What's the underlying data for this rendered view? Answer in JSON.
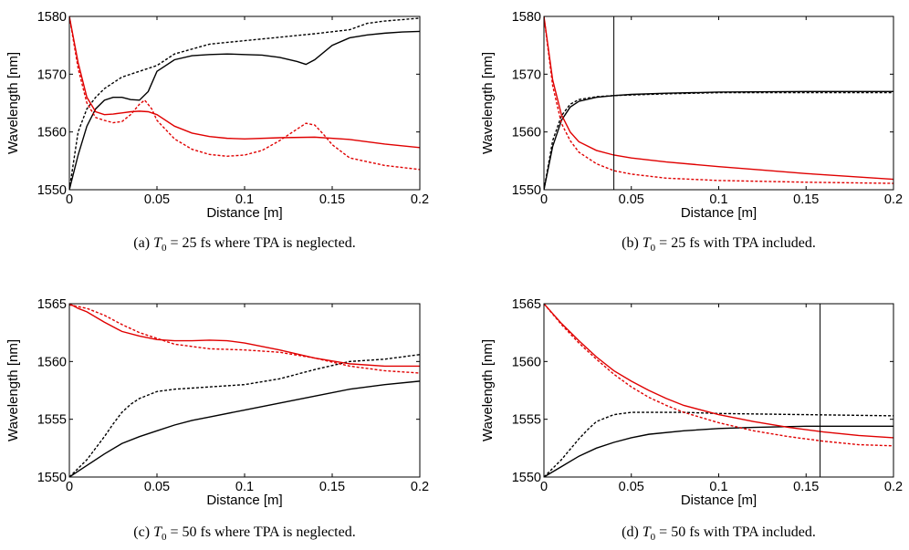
{
  "chart_data": [
    {
      "type": "line",
      "caption": {
        "prefix": "(a)",
        "t": "T",
        "sub": "0",
        "rest": " = 25 fs where TPA is neglected."
      },
      "xlabel": "Distance [m]",
      "ylabel": "Wavelength [nm]",
      "xlim": [
        0,
        0.2
      ],
      "ylim": [
        1550,
        1580
      ],
      "xticks": [
        0,
        0.05,
        0.1,
        0.15,
        0.2
      ],
      "xtick_labels": [
        "0",
        "0.05",
        "0.1",
        "0.15",
        "0.2"
      ],
      "yticks": [
        1550,
        1560,
        1570,
        1580
      ],
      "ytick_labels": [
        "1550",
        "1560",
        "1570",
        "1580"
      ],
      "grid": false,
      "vline": null,
      "series": [
        {
          "color": "#000000",
          "dash": "solid",
          "x": [
            0,
            0.005,
            0.01,
            0.015,
            0.02,
            0.025,
            0.03,
            0.035,
            0.04,
            0.045,
            0.05,
            0.06,
            0.07,
            0.08,
            0.09,
            0.1,
            0.11,
            0.12,
            0.13,
            0.135,
            0.14,
            0.15,
            0.16,
            0.17,
            0.18,
            0.19,
            0.2
          ],
          "y": [
            1550,
            1556,
            1561,
            1564,
            1565.5,
            1566,
            1566,
            1565.6,
            1565.5,
            1567,
            1570.5,
            1572.5,
            1573.2,
            1573.4,
            1573.5,
            1573.4,
            1573.3,
            1572.9,
            1572.2,
            1571.7,
            1572.5,
            1575,
            1576.3,
            1576.8,
            1577.1,
            1577.3,
            1577.4
          ]
        },
        {
          "color": "#000000",
          "dash": "dotted",
          "x": [
            0,
            0.005,
            0.01,
            0.015,
            0.02,
            0.03,
            0.04,
            0.05,
            0.06,
            0.08,
            0.1,
            0.12,
            0.14,
            0.16,
            0.17,
            0.18,
            0.2
          ],
          "y": [
            1550,
            1560,
            1564,
            1566,
            1567.5,
            1569.5,
            1570.5,
            1571.5,
            1573.5,
            1575.2,
            1575.8,
            1576.4,
            1577,
            1577.7,
            1578.8,
            1579.2,
            1579.7
          ]
        },
        {
          "color": "#e00000",
          "dash": "solid",
          "x": [
            0,
            0.005,
            0.01,
            0.015,
            0.02,
            0.025,
            0.03,
            0.035,
            0.04,
            0.045,
            0.05,
            0.06,
            0.07,
            0.08,
            0.09,
            0.1,
            0.12,
            0.14,
            0.16,
            0.18,
            0.2
          ],
          "y": [
            1580,
            1572,
            1566,
            1563.5,
            1563,
            1563.1,
            1563.3,
            1563.5,
            1563.6,
            1563.5,
            1563,
            1561,
            1559.8,
            1559.2,
            1558.9,
            1558.8,
            1559,
            1559.1,
            1558.7,
            1557.9,
            1557.3
          ]
        },
        {
          "color": "#e00000",
          "dash": "dotted",
          "x": [
            0,
            0.005,
            0.01,
            0.015,
            0.02,
            0.025,
            0.03,
            0.035,
            0.04,
            0.043,
            0.047,
            0.05,
            0.06,
            0.07,
            0.08,
            0.09,
            0.1,
            0.11,
            0.12,
            0.13,
            0.135,
            0.14,
            0.145,
            0.15,
            0.16,
            0.18,
            0.2
          ],
          "y": [
            1580,
            1571,
            1565,
            1562.5,
            1562,
            1561.6,
            1561.8,
            1563,
            1564.8,
            1565.5,
            1564,
            1562,
            1558.8,
            1557,
            1556.1,
            1555.8,
            1556,
            1556.8,
            1558.5,
            1560.5,
            1561.5,
            1561.2,
            1559.6,
            1557.8,
            1555.5,
            1554.2,
            1553.5
          ]
        }
      ]
    },
    {
      "type": "line",
      "caption": {
        "prefix": "(b)",
        "t": "T",
        "sub": "0",
        "rest": " = 25 fs with TPA included."
      },
      "xlabel": "Distance [m]",
      "ylabel": "Wavelength [nm]",
      "xlim": [
        0,
        0.2
      ],
      "ylim": [
        1550,
        1580
      ],
      "xticks": [
        0,
        0.05,
        0.1,
        0.15,
        0.2
      ],
      "xtick_labels": [
        "0",
        "0.05",
        "0.1",
        "0.15",
        "0.2"
      ],
      "yticks": [
        1550,
        1560,
        1570,
        1580
      ],
      "ytick_labels": [
        "1550",
        "1560",
        "1570",
        "1580"
      ],
      "grid": false,
      "vline": 0.04,
      "series": [
        {
          "color": "#000000",
          "dash": "solid",
          "x": [
            0,
            0.005,
            0.01,
            0.015,
            0.02,
            0.03,
            0.04,
            0.05,
            0.07,
            0.1,
            0.15,
            0.2
          ],
          "y": [
            1550,
            1557.5,
            1562,
            1564.3,
            1565.3,
            1566,
            1566.3,
            1566.5,
            1566.7,
            1566.9,
            1567,
            1567
          ]
        },
        {
          "color": "#000000",
          "dash": "dotted",
          "x": [
            0,
            0.005,
            0.01,
            0.015,
            0.02,
            0.03,
            0.04,
            0.05,
            0.07,
            0.1,
            0.15,
            0.2
          ],
          "y": [
            1550,
            1558.5,
            1562.8,
            1564.8,
            1565.6,
            1566.1,
            1566.3,
            1566.4,
            1566.6,
            1566.8,
            1566.8,
            1566.8
          ]
        },
        {
          "color": "#e00000",
          "dash": "solid",
          "x": [
            0,
            0.005,
            0.01,
            0.015,
            0.02,
            0.03,
            0.04,
            0.05,
            0.07,
            0.1,
            0.125,
            0.15,
            0.175,
            0.2
          ],
          "y": [
            1580,
            1569,
            1563,
            1560,
            1558.3,
            1556.8,
            1556,
            1555.5,
            1554.8,
            1554,
            1553.4,
            1552.8,
            1552.3,
            1551.8
          ]
        },
        {
          "color": "#e00000",
          "dash": "dotted",
          "x": [
            0,
            0.005,
            0.01,
            0.015,
            0.02,
            0.03,
            0.04,
            0.05,
            0.07,
            0.1,
            0.15,
            0.2
          ],
          "y": [
            1580,
            1568,
            1561.5,
            1558.5,
            1556.5,
            1554.5,
            1553.3,
            1552.7,
            1552,
            1551.6,
            1551.3,
            1551.1
          ]
        }
      ]
    },
    {
      "type": "line",
      "caption": {
        "prefix": "(c)",
        "t": "T",
        "sub": "0",
        "rest": " = 50 fs where TPA is neglected."
      },
      "xlabel": "Distance [m]",
      "ylabel": "Wavelength [nm]",
      "xlim": [
        0,
        0.2
      ],
      "ylim": [
        1550,
        1565
      ],
      "xticks": [
        0,
        0.05,
        0.1,
        0.15,
        0.2
      ],
      "xtick_labels": [
        "0",
        "0.05",
        "0.1",
        "0.15",
        "0.2"
      ],
      "yticks": [
        1550,
        1555,
        1560,
        1565
      ],
      "ytick_labels": [
        "1550",
        "1555",
        "1560",
        "1565"
      ],
      "grid": false,
      "vline": null,
      "series": [
        {
          "color": "#000000",
          "dash": "solid",
          "x": [
            0,
            0.01,
            0.02,
            0.03,
            0.04,
            0.05,
            0.06,
            0.07,
            0.08,
            0.1,
            0.12,
            0.14,
            0.16,
            0.18,
            0.2
          ],
          "y": [
            1550,
            1551,
            1552,
            1552.9,
            1553.5,
            1554,
            1554.5,
            1554.9,
            1555.2,
            1555.8,
            1556.4,
            1557,
            1557.6,
            1558,
            1558.3
          ]
        },
        {
          "color": "#000000",
          "dash": "dotted",
          "x": [
            0,
            0.01,
            0.02,
            0.025,
            0.03,
            0.035,
            0.04,
            0.05,
            0.06,
            0.08,
            0.1,
            0.12,
            0.14,
            0.16,
            0.18,
            0.2
          ],
          "y": [
            1550,
            1551.5,
            1553.5,
            1554.6,
            1555.6,
            1556.3,
            1556.8,
            1557.4,
            1557.6,
            1557.8,
            1558,
            1558.5,
            1559.3,
            1560,
            1560.2,
            1560.6
          ]
        },
        {
          "color": "#e00000",
          "dash": "solid",
          "x": [
            0,
            0.005,
            0.01,
            0.02,
            0.03,
            0.04,
            0.05,
            0.06,
            0.07,
            0.08,
            0.09,
            0.1,
            0.12,
            0.14,
            0.16,
            0.18,
            0.2
          ],
          "y": [
            1565,
            1564.6,
            1564.3,
            1563.4,
            1562.6,
            1562.2,
            1561.9,
            1561.8,
            1561.8,
            1561.85,
            1561.8,
            1561.6,
            1561,
            1560.3,
            1559.8,
            1559.6,
            1559.6
          ]
        },
        {
          "color": "#e00000",
          "dash": "dotted",
          "x": [
            0,
            0.01,
            0.02,
            0.03,
            0.04,
            0.05,
            0.06,
            0.08,
            0.1,
            0.12,
            0.14,
            0.16,
            0.18,
            0.2
          ],
          "y": [
            1564.9,
            1564.6,
            1564,
            1563.2,
            1562.5,
            1562,
            1561.5,
            1561.1,
            1561,
            1560.8,
            1560.3,
            1559.6,
            1559.2,
            1559
          ]
        }
      ]
    },
    {
      "type": "line",
      "caption": {
        "prefix": "(d)",
        "t": "T",
        "sub": "0",
        "rest": " = 50 fs with TPA included."
      },
      "xlabel": "Distance [m]",
      "ylabel": "Wavelength [nm]",
      "xlim": [
        0,
        0.2
      ],
      "ylim": [
        1550,
        1565
      ],
      "xticks": [
        0,
        0.05,
        0.1,
        0.15,
        0.2
      ],
      "xtick_labels": [
        "0",
        "0.05",
        "0.1",
        "0.15",
        "0.2"
      ],
      "yticks": [
        1550,
        1555,
        1560,
        1565
      ],
      "ytick_labels": [
        "1550",
        "1555",
        "1560",
        "1565"
      ],
      "grid": false,
      "vline": 0.158,
      "series": [
        {
          "color": "#000000",
          "dash": "solid",
          "x": [
            0,
            0.01,
            0.02,
            0.03,
            0.04,
            0.05,
            0.06,
            0.08,
            0.1,
            0.12,
            0.15,
            0.2
          ],
          "y": [
            1550,
            1550.9,
            1551.8,
            1552.5,
            1553,
            1553.4,
            1553.7,
            1554,
            1554.2,
            1554.3,
            1554.4,
            1554.4
          ]
        },
        {
          "color": "#000000",
          "dash": "dotted",
          "x": [
            0,
            0.01,
            0.02,
            0.025,
            0.03,
            0.04,
            0.05,
            0.06,
            0.08,
            0.1,
            0.15,
            0.2
          ],
          "y": [
            1550,
            1551.5,
            1553.3,
            1554.1,
            1554.8,
            1555.4,
            1555.6,
            1555.6,
            1555.6,
            1555.5,
            1555.4,
            1555.3
          ]
        },
        {
          "color": "#e00000",
          "dash": "solid",
          "x": [
            0,
            0.01,
            0.02,
            0.03,
            0.04,
            0.05,
            0.06,
            0.07,
            0.08,
            0.1,
            0.12,
            0.14,
            0.16,
            0.18,
            0.2
          ],
          "y": [
            1565,
            1563.3,
            1561.8,
            1560.4,
            1559.2,
            1558.3,
            1557.5,
            1556.8,
            1556.2,
            1555.4,
            1554.8,
            1554.3,
            1553.9,
            1553.6,
            1553.4
          ]
        },
        {
          "color": "#e00000",
          "dash": "dotted",
          "x": [
            0,
            0.01,
            0.02,
            0.03,
            0.04,
            0.05,
            0.06,
            0.07,
            0.08,
            0.1,
            0.12,
            0.14,
            0.16,
            0.18,
            0.2
          ],
          "y": [
            1565,
            1563.2,
            1561.6,
            1560.2,
            1558.9,
            1557.8,
            1556.9,
            1556.2,
            1555.6,
            1554.7,
            1554,
            1553.5,
            1553.1,
            1552.8,
            1552.7
          ]
        }
      ]
    }
  ]
}
